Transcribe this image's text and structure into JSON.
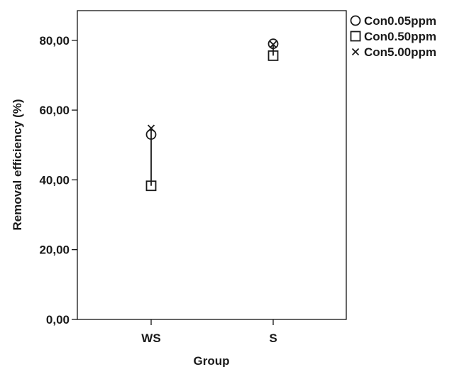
{
  "chart_data": {
    "type": "scatter",
    "xlabel": "Group",
    "ylabel": "Removal efficiency (%)",
    "categories": [
      "WS",
      "S"
    ],
    "ylim": [
      0,
      88.5
    ],
    "yticks": [
      0,
      20,
      40,
      60,
      80
    ],
    "ytick_labels": [
      "0,00",
      "20,00",
      "40,00",
      "60,00",
      "80,00"
    ],
    "series": [
      {
        "name": "Con0.05ppm",
        "marker": "circle",
        "values": [
          53.0,
          79.0
        ]
      },
      {
        "name": "Con0.50ppm",
        "marker": "square",
        "values": [
          38.3,
          75.6
        ]
      },
      {
        "name": "Con5.00ppm",
        "marker": "x",
        "values": [
          54.8,
          78.8
        ]
      }
    ],
    "legend_position": "right",
    "range_lines": true,
    "grid": false,
    "colors": {
      "ink": "#1a1a1a",
      "frame": "#000000",
      "background": "#ffffff"
    }
  }
}
